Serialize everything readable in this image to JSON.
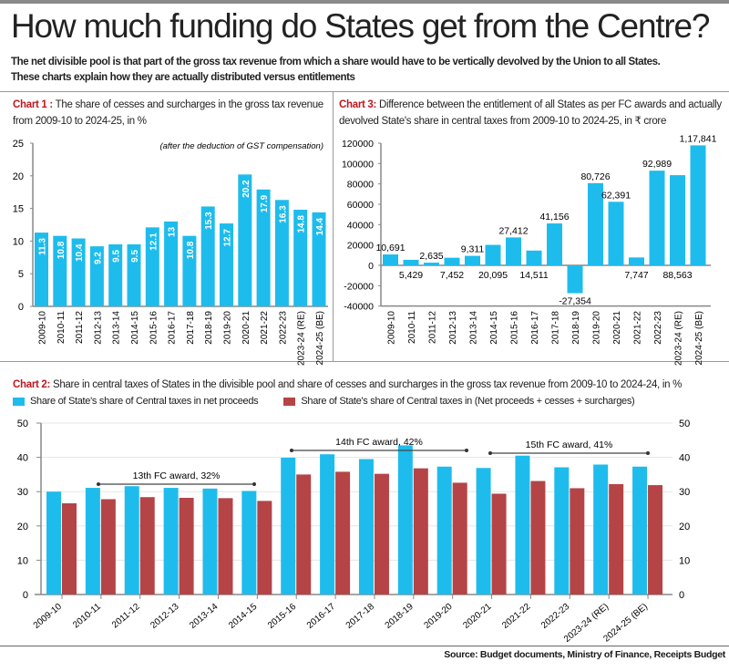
{
  "header": {
    "title": "How much funding do States get from the Centre?",
    "subtitle_line1": "The net divisible pool is that part of the gross tax revenue from which a share would have to be vertically devolved by the Union to all States.",
    "subtitle_line2": "These charts explain how they are actually distributed versus entitlements"
  },
  "source": "Source: Budget documents, Ministry of Finance, Receipts Budget",
  "colors": {
    "blue": "#1ebcec",
    "red": "#b54446",
    "label_red": "#c0161f"
  },
  "chart_data": [
    {
      "id": "chart1",
      "type": "bar",
      "label": "Chart 1 :",
      "title": "The share of cesses and surcharges in the gross tax revenue from 2009-10 to 2024-25, in %",
      "annotation": "(after the deduction of GST compensation)",
      "categories": [
        "2009-10",
        "2010-11",
        "2011-12",
        "2012-13",
        "2013-14",
        "2014-15",
        "2015-16",
        "2016-17",
        "2017-18",
        "2018-19",
        "2019-20",
        "2020-21",
        "2021-22",
        "2022-23",
        "2023-24 (RE)",
        "2024-25 (BE)"
      ],
      "values": [
        11.3,
        10.8,
        10.4,
        9.2,
        9.5,
        9.5,
        12.1,
        13,
        10.8,
        15.3,
        12.7,
        20.2,
        17.9,
        16.3,
        14.8,
        14.4
      ],
      "data_labels": [
        "11.3",
        "10.8",
        "10.4",
        "9.2",
        "9.5",
        "9.5",
        "12.1",
        "13",
        "10.8",
        "15.3",
        "12.7",
        "20.2",
        "17.9",
        "16.3",
        "14.8",
        "14.4"
      ],
      "yticks": [
        "0",
        "5",
        "10",
        "15",
        "20",
        "25"
      ],
      "ylim": [
        0,
        25
      ],
      "grid": false
    },
    {
      "id": "chart3",
      "type": "bar",
      "label": "Chart 3:",
      "title": "Difference between the entitlement of all States as per FC awards and actually devolved State's share in central taxes from 2009-10 to 2024-25, in ₹ crore",
      "categories": [
        "2009-10",
        "2010-11",
        "2011-12",
        "2012-13",
        "2013-14",
        "2014-15",
        "2015-16",
        "2016-17",
        "2017-18",
        "2018-19",
        "2019-20",
        "2020-21",
        "2021-22",
        "2022-23",
        "2023-24 (RE)",
        "2024-25 (BE)"
      ],
      "values": [
        10691,
        5429,
        2635,
        7452,
        9311,
        20095,
        27412,
        14511,
        41156,
        -27354,
        80726,
        62391,
        7747,
        92989,
        88563,
        117841
      ],
      "data_labels": [
        "10,691",
        "5,429",
        "2,635",
        "7,452",
        "9,311",
        "20,095",
        "27,412",
        "14,511",
        "41,156",
        "-27,354",
        "80,726",
        "62,391",
        "7,747",
        "92,989",
        "88,563",
        "1,17,841"
      ],
      "yticks": [
        "-40000",
        "-20000",
        "0",
        "20000",
        "40000",
        "60000",
        "80000",
        "100000",
        "120000"
      ],
      "ylim": [
        -40000,
        120000
      ],
      "grid": false
    },
    {
      "id": "chart2",
      "type": "bar",
      "label": "Chart 2:",
      "title": "Share in central taxes of States in the divisible pool and share of cesses and surcharges in the gross tax revenue from 2009-10 to 2024-24, in %",
      "categories": [
        "2009-10",
        "2010-11",
        "2011-12",
        "2012-13",
        "2013-14",
        "2014-15",
        "2015-16",
        "2016-17",
        "2017-18",
        "2018-19",
        "2019-20",
        "2020-21",
        "2021-22",
        "2022-23",
        "2023-24 (RE)",
        "2024-25 (BE)"
      ],
      "series": [
        {
          "name": "Share of State's share of Central taxes in net proceeds",
          "color": "#1ebcec",
          "values": [
            30.0,
            31.1,
            31.6,
            31.1,
            30.9,
            30.2,
            39.9,
            40.9,
            39.5,
            43.5,
            37.3,
            36.9,
            40.5,
            37.1,
            37.9,
            37.3
          ]
        },
        {
          "name": "Share of State's share of Central taxes in (Net proceeds + cesses + surcharges)",
          "color": "#b54446",
          "values": [
            26.6,
            27.8,
            28.4,
            28.2,
            28.1,
            27.3,
            35.0,
            35.8,
            35.2,
            36.8,
            32.6,
            29.4,
            33.1,
            31.0,
            32.2,
            31.9
          ]
        }
      ],
      "annotations": [
        {
          "text": "13th FC award, 32%",
          "from": "2010-11",
          "to": "2014-15"
        },
        {
          "text": "14th FC award, 42%",
          "from": "2015-16",
          "to": "2019-20"
        },
        {
          "text": "15th FC award, 41%",
          "from": "2020-21",
          "to": "2024-25 (BE)"
        }
      ],
      "yticks": [
        "0",
        "10",
        "20",
        "30",
        "40",
        "50"
      ],
      "ylim": [
        0,
        50
      ],
      "grid": true,
      "legend": "top-left"
    }
  ]
}
